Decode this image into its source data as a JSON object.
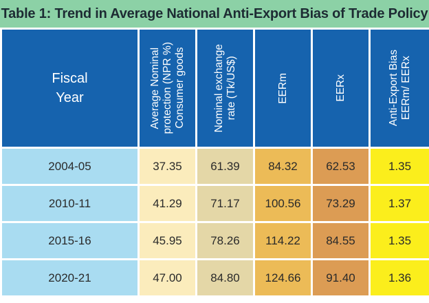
{
  "title": "Table 1: Trend in Average National Anti-Export Bias  of Trade Policy",
  "headers": [
    "Fiscal\nYear",
    "Average Nominal\nprotection (NPR %)\nConsumer goods",
    "Nominal exchange\nrate (Tk/US$)",
    "EERm",
    "EERx",
    "Anti-Export Bias\nEERm/ EERx"
  ],
  "rows": [
    [
      "2004-05",
      "37.35",
      "61.39",
      "84.32",
      "62.53",
      "1.35"
    ],
    [
      "2010-11",
      "41.29",
      "71.17",
      "100.56",
      "73.29",
      "1.37"
    ],
    [
      "2015-16",
      "45.95",
      "78.26",
      "114.22",
      "84.55",
      "1.35"
    ],
    [
      "2020-21",
      "47.00",
      "84.80",
      "124.66",
      "91.40",
      "1.36"
    ]
  ],
  "colors": {
    "title_bg": "#8cd1a6",
    "header_bg": "#1663ae",
    "col_fiscal_year": "#a9dcf1",
    "col_npr": "#fbecbc",
    "col_exchange_rate": "#e4d7a7",
    "col_eerm": "#ecbb57",
    "col_eerx": "#dc9c54",
    "col_bias": "#fbee1c"
  }
}
